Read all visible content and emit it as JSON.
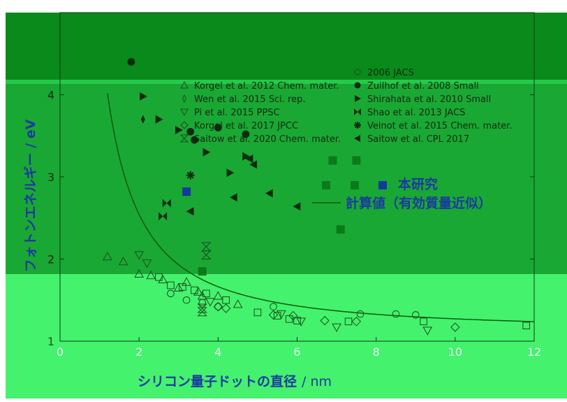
{
  "chart_data": {
    "type": "scatter",
    "xlabel": "シリコン量子ドットの直径",
    "xlabel_unit": "/ nm",
    "ylabel": "フォトンエネルギー / eV",
    "xlim": [
      0,
      12
    ],
    "ylim": [
      1,
      5
    ],
    "x_ticks": [
      "0",
      "2",
      "4",
      "6",
      "8",
      "10",
      "12"
    ],
    "y_ticks": [
      "1",
      "2",
      "3",
      "4"
    ],
    "legend_position": "top-right",
    "legend_left": [
      {
        "label": "Korgel et al. 2012 Chem. mater.",
        "marker": "triangle-up-open"
      },
      {
        "label": "Wen et al. 2015 Sci. rep.",
        "marker": "thin-diamond-open"
      },
      {
        "label": "Pi et al. 2015 PPSC",
        "marker": "triangle-down-open"
      },
      {
        "label": "Korgel et al. 2017 JPCC",
        "marker": "diamond-open"
      },
      {
        "label": "Saitow et al. 2020 Chem. mater.",
        "marker": "hourglass-open"
      }
    ],
    "legend_right": [
      {
        "label": "2006 JACS",
        "marker": "circle-open"
      },
      {
        "label": "Zuilhof et al. 2008 Small",
        "marker": "circle-filled"
      },
      {
        "label": "Shirahata et al. 2010 Small",
        "marker": "triangle-right-filled"
      },
      {
        "label": "Shao et al. 2013 JACS",
        "marker": "bowtie-filled"
      },
      {
        "label": "Veinot et al. 2015 Chem. mater.",
        "marker": "star-filled"
      },
      {
        "label": "Saitow et al. CPL 2017",
        "marker": "triangle-left-filled"
      }
    ],
    "series": [
      {
        "name": "Zuilhof et al. 2008 Small",
        "marker": "circle-filled",
        "points": [
          [
            1.8,
            4.4
          ],
          [
            3.3,
            3.55
          ],
          [
            3.4,
            3.45
          ],
          [
            4.0,
            3.6
          ],
          [
            4.7,
            3.52
          ]
        ]
      },
      {
        "name": "Shirahata et al. 2010 Small",
        "marker": "triangle-right-filled",
        "points": [
          [
            2.1,
            3.98
          ],
          [
            2.5,
            3.7
          ],
          [
            3.0,
            3.57
          ],
          [
            3.7,
            3.3
          ],
          [
            4.3,
            3.05
          ],
          [
            4.7,
            3.25
          ]
        ]
      },
      {
        "name": "Wen et al. 2015 Sci. rep.",
        "marker": "thin-diamond-filled",
        "points": [
          [
            2.1,
            3.7
          ]
        ]
      },
      {
        "name": "Shao et al. 2013 JACS",
        "marker": "bowtie-filled",
        "points": [
          [
            2.7,
            2.68
          ],
          [
            2.6,
            2.52
          ]
        ]
      },
      {
        "name": "Veinot et al. 2015 Chem. mater.",
        "marker": "star-filled",
        "points": [
          [
            3.3,
            3.02
          ]
        ]
      },
      {
        "name": "Saitow et al. CPL 2017",
        "marker": "triangle-left-filled",
        "points": [
          [
            3.3,
            2.58
          ],
          [
            4.4,
            2.75
          ],
          [
            4.8,
            3.22
          ],
          [
            5.3,
            2.8
          ],
          [
            6.0,
            2.64
          ],
          [
            4.9,
            3.15
          ]
        ]
      },
      {
        "name": "Korgel et al. 2012 Chem. mater.",
        "marker": "triangle-up-open",
        "points": [
          [
            1.2,
            2.03
          ],
          [
            1.6,
            1.97
          ],
          [
            2.0,
            1.82
          ],
          [
            2.3,
            1.8
          ],
          [
            2.6,
            1.75
          ],
          [
            3.0,
            1.65
          ],
          [
            3.2,
            1.72
          ],
          [
            3.5,
            1.6
          ],
          [
            3.6,
            1.55
          ],
          [
            4.0,
            1.55
          ],
          [
            4.5,
            1.45
          ]
        ]
      },
      {
        "name": "Korgel et al. 2012 (open squares)",
        "marker": "square-open",
        "points": [
          [
            2.5,
            1.78
          ],
          [
            2.8,
            1.68
          ],
          [
            3.1,
            1.66
          ],
          [
            3.4,
            1.62
          ],
          [
            3.7,
            1.58
          ],
          [
            4.2,
            1.5
          ],
          [
            5.0,
            1.35
          ],
          [
            5.5,
            1.31
          ],
          [
            5.8,
            1.27
          ],
          [
            6.0,
            1.25
          ],
          [
            7.3,
            1.24
          ],
          [
            9.2,
            1.24
          ],
          [
            11.8,
            1.19
          ]
        ]
      },
      {
        "name": "Pi et al. 2015 PPSC",
        "marker": "triangle-down-open",
        "points": [
          [
            2.0,
            2.05
          ],
          [
            2.2,
            1.95
          ],
          [
            3.8,
            1.48
          ],
          [
            5.6,
            1.33
          ],
          [
            6.1,
            1.24
          ],
          [
            7.0,
            1.17
          ],
          [
            9.3,
            1.13
          ]
        ]
      },
      {
        "name": "Korgel et al. 2017 JPCC",
        "marker": "diamond-open",
        "points": [
          [
            4.0,
            1.42
          ],
          [
            4.2,
            1.4
          ],
          [
            5.4,
            1.32
          ],
          [
            5.9,
            1.31
          ],
          [
            6.7,
            1.25
          ],
          [
            7.5,
            1.24
          ],
          [
            10.0,
            1.17
          ]
        ]
      },
      {
        "name": "2006 JACS",
        "marker": "circle-open",
        "points": [
          [
            2.8,
            1.58
          ],
          [
            3.2,
            1.5
          ],
          [
            3.6,
            1.47
          ],
          [
            4.0,
            1.42
          ],
          [
            5.4,
            1.42
          ],
          [
            7.6,
            1.33
          ],
          [
            8.5,
            1.33
          ],
          [
            9.0,
            1.32
          ]
        ]
      },
      {
        "name": "Saitow et al. 2020 Chem. mater.",
        "marker": "hourglass-open",
        "points": [
          [
            3.7,
            2.15
          ],
          [
            3.7,
            2.05
          ],
          [
            3.6,
            1.4
          ],
          [
            3.6,
            1.36
          ]
        ]
      },
      {
        "name": "本研究",
        "marker": "square-filled",
        "points": [
          [
            6.9,
            3.2
          ],
          [
            7.5,
            3.2
          ],
          [
            3.2,
            2.82
          ],
          [
            7.1,
            2.36
          ],
          [
            3.6,
            1.85
          ]
        ]
      }
    ],
    "calc_curve": {
      "name": "計算値（有効質量近似）",
      "Eg": 1.12,
      "A": 3.73,
      "exponent": 1.39,
      "x_from": 1.2,
      "x_to": 12
    }
  },
  "legend_study_label": "本研究",
  "legend_calc_label": "計算値（有効質量近似）",
  "colors": {
    "dark_band": "#0a8c1c",
    "mid_band": "#1aa834",
    "light_band": "#42f06b",
    "curve": "#0c5a0c",
    "marker_dark": "#0e2a10",
    "open_marker": "#1a4e1a",
    "study_square": "#0c7a1a",
    "study_blue": "#123a9a",
    "axis_text": "#e8fff0",
    "label_blue": "#1a3aa0"
  }
}
